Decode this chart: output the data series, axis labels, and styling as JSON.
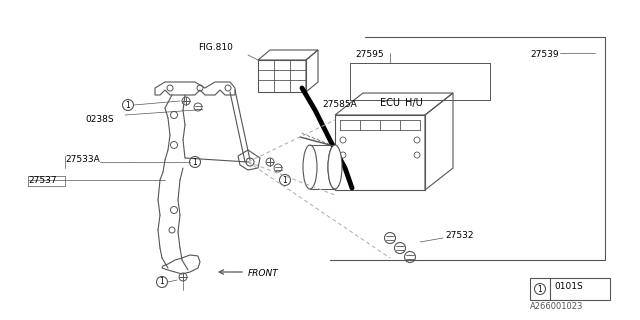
{
  "bg_color": "#ffffff",
  "lc": "#aaaaaa",
  "dk": "#555555",
  "bk": "#000000",
  "fig_ref": "FIG.810",
  "label_27595": "27595",
  "label_27539": "27539",
  "label_27585A": "27585A",
  "label_ECU": "ECU",
  "label_HU": "H/U",
  "label_27533A": "27533A",
  "label_27537": "27537",
  "label_27532": "27532",
  "label_0238S": "0238S",
  "front_label": "FRONT",
  "doc_id": "A266001023",
  "legend_box": "0101S"
}
